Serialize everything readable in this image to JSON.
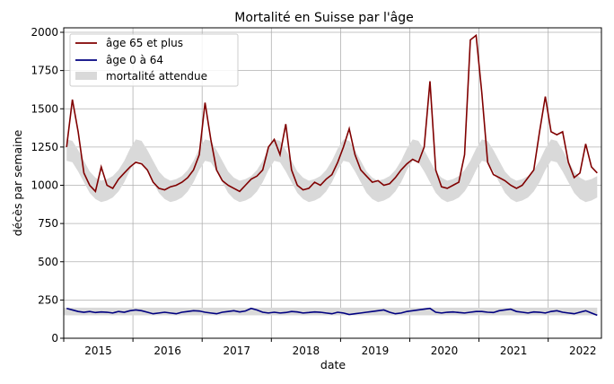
{
  "chart_data": {
    "type": "line",
    "title": "Mortalité en Suisse par l'âge",
    "xlabel": "date",
    "ylabel": "décès par semaine",
    "ylim": [
      0,
      2000
    ],
    "yticks": [
      0,
      250,
      500,
      750,
      1000,
      1250,
      1500,
      1750,
      2000
    ],
    "xticks": [
      "2015",
      "2016",
      "2017",
      "2018",
      "2019",
      "2020",
      "2021",
      "2022"
    ],
    "grid": true,
    "legend_placement": "top-left",
    "colors": {
      "age_65_plus": "#800000",
      "age_0_64": "#000080",
      "expected": "#d9d9d9"
    },
    "x": [
      "2015-01",
      "2015-02",
      "2015-03",
      "2015-04",
      "2015-05",
      "2015-06",
      "2015-07",
      "2015-08",
      "2015-09",
      "2015-10",
      "2015-11",
      "2015-12",
      "2016-01",
      "2016-02",
      "2016-03",
      "2016-04",
      "2016-05",
      "2016-06",
      "2016-07",
      "2016-08",
      "2016-09",
      "2016-10",
      "2016-11",
      "2016-12",
      "2017-01",
      "2017-02",
      "2017-03",
      "2017-04",
      "2017-05",
      "2017-06",
      "2017-07",
      "2017-08",
      "2017-09",
      "2017-10",
      "2017-11",
      "2017-12",
      "2018-01",
      "2018-02",
      "2018-03",
      "2018-04",
      "2018-05",
      "2018-06",
      "2018-07",
      "2018-08",
      "2018-09",
      "2018-10",
      "2018-11",
      "2018-12",
      "2019-01",
      "2019-02",
      "2019-03",
      "2019-04",
      "2019-05",
      "2019-06",
      "2019-07",
      "2019-08",
      "2019-09",
      "2019-10",
      "2019-11",
      "2019-12",
      "2020-01",
      "2020-02",
      "2020-03",
      "2020-04",
      "2020-05",
      "2020-06",
      "2020-07",
      "2020-08",
      "2020-09",
      "2020-10",
      "2020-11",
      "2020-12",
      "2021-01",
      "2021-02",
      "2021-03",
      "2021-04",
      "2021-05",
      "2021-06",
      "2021-07",
      "2021-08",
      "2021-09",
      "2021-10",
      "2021-11",
      "2021-12",
      "2022-01",
      "2022-02",
      "2022-03",
      "2022-04",
      "2022-05",
      "2022-06",
      "2022-07",
      "2022-08",
      "2022-09"
    ],
    "series": [
      {
        "name": "âge 65 et plus",
        "key": "age_65_plus",
        "values": [
          1250,
          1560,
          1350,
          1080,
          1000,
          960,
          1120,
          1000,
          980,
          1040,
          1080,
          1120,
          1150,
          1140,
          1100,
          1020,
          980,
          970,
          990,
          1000,
          1020,
          1050,
          1100,
          1200,
          1540,
          1300,
          1100,
          1030,
          1000,
          980,
          960,
          1000,
          1040,
          1060,
          1100,
          1250,
          1300,
          1200,
          1400,
          1100,
          1000,
          970,
          980,
          1020,
          1000,
          1040,
          1070,
          1150,
          1250,
          1370,
          1200,
          1100,
          1060,
          1020,
          1030,
          1000,
          1010,
          1050,
          1100,
          1140,
          1170,
          1150,
          1250,
          1680,
          1100,
          990,
          980,
          1000,
          1020,
          1200,
          1950,
          1980,
          1600,
          1150,
          1070,
          1050,
          1030,
          1000,
          980,
          1000,
          1050,
          1100,
          1350,
          1580,
          1350,
          1330,
          1350,
          1150,
          1050,
          1080,
          1270,
          1120,
          1080
        ]
      },
      {
        "name": "âge 0 à 64",
        "key": "age_0_64",
        "values": [
          195,
          185,
          175,
          170,
          175,
          168,
          172,
          170,
          165,
          175,
          170,
          180,
          185,
          180,
          170,
          160,
          165,
          170,
          165,
          160,
          170,
          175,
          180,
          178,
          170,
          165,
          160,
          170,
          175,
          180,
          172,
          178,
          195,
          185,
          170,
          165,
          170,
          165,
          168,
          175,
          172,
          165,
          168,
          172,
          170,
          165,
          160,
          170,
          165,
          155,
          160,
          165,
          170,
          175,
          180,
          185,
          170,
          160,
          165,
          175,
          180,
          185,
          190,
          195,
          170,
          165,
          170,
          172,
          168,
          165,
          170,
          175,
          175,
          170,
          168,
          180,
          185,
          190,
          175,
          170,
          165,
          172,
          170,
          165,
          175,
          180,
          170,
          165,
          160,
          170,
          180,
          165,
          150
        ]
      },
      {
        "name": "mortalité attendue",
        "key": "expected",
        "low_65_plus": [
          1160,
          1150,
          1090,
          1020,
          950,
          910,
          890,
          900,
          920,
          960,
          1020,
          1100,
          1160,
          1150,
          1090,
          1020,
          950,
          910,
          890,
          900,
          920,
          960,
          1020,
          1100,
          1160,
          1150,
          1090,
          1020,
          950,
          910,
          890,
          900,
          920,
          960,
          1020,
          1100,
          1160,
          1150,
          1090,
          1020,
          950,
          910,
          890,
          900,
          920,
          960,
          1020,
          1100,
          1160,
          1150,
          1090,
          1020,
          950,
          910,
          890,
          900,
          920,
          960,
          1020,
          1100,
          1160,
          1150,
          1090,
          1020,
          950,
          910,
          890,
          900,
          920,
          960,
          1020,
          1100,
          1160,
          1150,
          1090,
          1020,
          950,
          910,
          890,
          900,
          920,
          960,
          1020,
          1100,
          1160,
          1150,
          1090,
          1020,
          950,
          910,
          890,
          900,
          920
        ],
        "high_65_plus": [
          1300,
          1290,
          1230,
          1160,
          1090,
          1050,
          1030,
          1040,
          1060,
          1100,
          1160,
          1240,
          1300,
          1290,
          1230,
          1160,
          1090,
          1050,
          1030,
          1040,
          1060,
          1100,
          1160,
          1240,
          1300,
          1290,
          1230,
          1160,
          1090,
          1050,
          1030,
          1040,
          1060,
          1100,
          1160,
          1240,
          1300,
          1290,
          1230,
          1160,
          1090,
          1050,
          1030,
          1040,
          1060,
          1100,
          1160,
          1240,
          1300,
          1290,
          1230,
          1160,
          1090,
          1050,
          1030,
          1040,
          1060,
          1100,
          1160,
          1240,
          1300,
          1290,
          1230,
          1160,
          1090,
          1050,
          1030,
          1040,
          1060,
          1100,
          1160,
          1240,
          1300,
          1290,
          1230,
          1160,
          1090,
          1050,
          1030,
          1040,
          1060,
          1100,
          1160,
          1240,
          1300,
          1290,
          1230,
          1160,
          1090,
          1050,
          1030,
          1040,
          1060
        ],
        "low_0_64": 150,
        "high_0_64": 200
      }
    ]
  }
}
